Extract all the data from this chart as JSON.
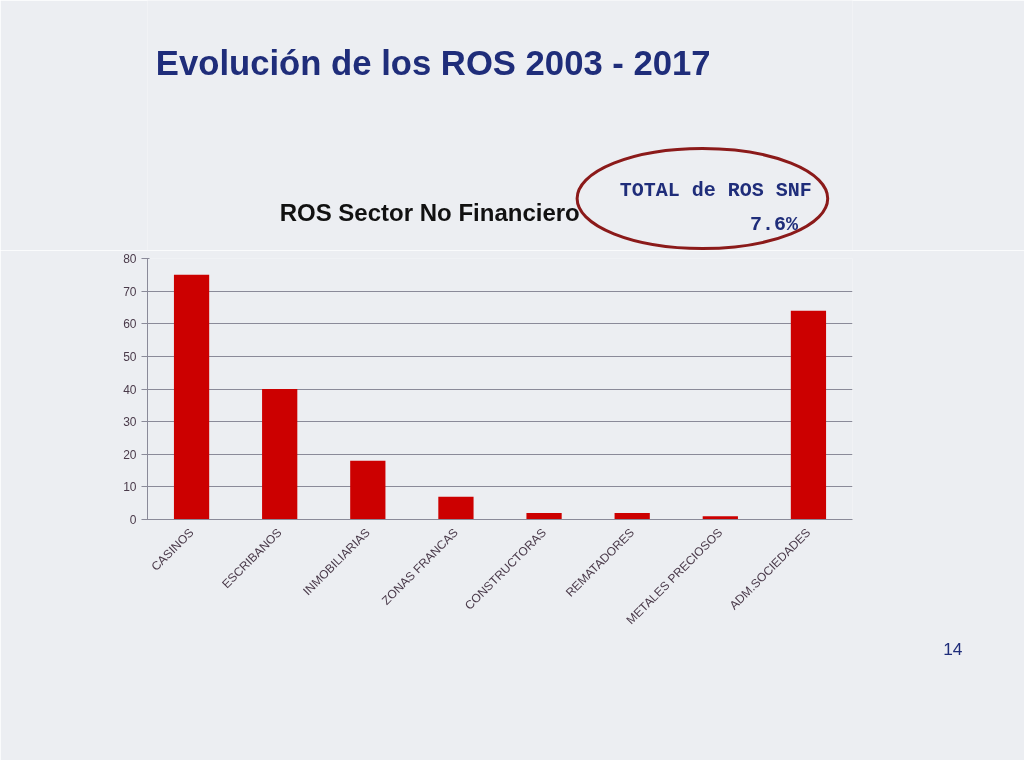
{
  "chart_data": {
    "type": "bar",
    "title": "Evolución de los ROS 2003 - 2017",
    "subtitle": "ROS Sector No Financiero",
    "categories": [
      "CASINOS",
      "ESCRIBANOS",
      "INMOBILIARIAS",
      "ZONAS FRANCAS",
      "CONSTRUCTORAS",
      "REMATADORES",
      "METALES PRECIOSOS",
      "ADM.SOCIEDADES"
    ],
    "values": [
      75,
      40,
      18,
      7,
      2,
      2,
      1,
      64
    ],
    "color": "#cc0000",
    "ylim": [
      0,
      80
    ],
    "yticks": [
      0,
      10,
      20,
      30,
      40,
      50,
      60,
      70,
      80
    ],
    "grid": "y",
    "annotations": [
      "TOTAL de ROS SNF",
      "7.6%",
      "14"
    ]
  }
}
